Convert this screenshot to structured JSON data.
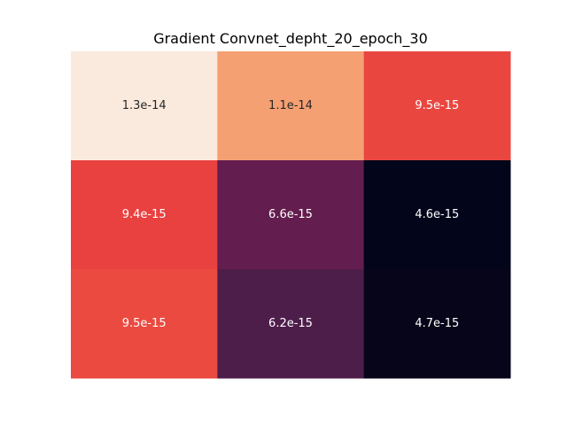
{
  "chart_data": {
    "type": "heatmap",
    "title": "Gradient Convnet_depht_20_epoch_30",
    "xlabel": "",
    "ylabel": "",
    "rows": 3,
    "cols": 3,
    "values": [
      [
        1.3e-14,
        1.1e-14,
        9.5e-15
      ],
      [
        9.4e-15,
        6.6e-15,
        4.6e-15
      ],
      [
        9.5e-15,
        6.2e-15,
        4.7e-15
      ]
    ],
    "cell_labels": [
      [
        "1.3e-14",
        "1.1e-14",
        "9.5e-15"
      ],
      [
        "9.4e-15",
        "6.6e-15",
        "4.6e-15"
      ],
      [
        "9.5e-15",
        "6.2e-15",
        "4.7e-15"
      ]
    ],
    "colormap": "rocket",
    "cell_colors": [
      [
        "#faeadd",
        "#f5a073",
        "#ea4640"
      ],
      [
        "#e94140",
        "#641d4f",
        "#03051a"
      ],
      [
        "#eb4a40",
        "#4e1e4b",
        "#070519"
      ]
    ],
    "label_colors": {
      "dark_text": "#262626",
      "light_text": "#ffffff"
    },
    "colorbar": false,
    "ticks": false
  }
}
